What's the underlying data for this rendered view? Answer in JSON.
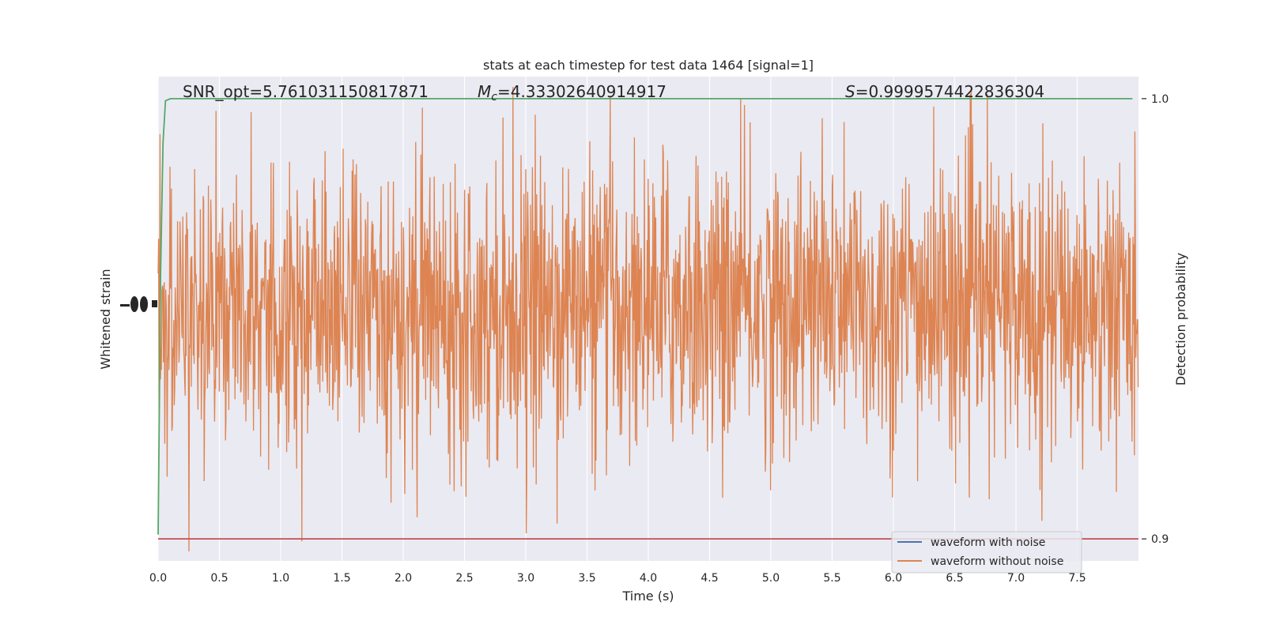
{
  "chart_data": {
    "type": "line",
    "title": "stats at each timestep for test data 1464 [signal=1]",
    "xlabel": "Time (s)",
    "ylabel_left": "Whitened strain",
    "ylabel_right": "Detection probability",
    "xlim": [
      0,
      8
    ],
    "x_ticks": [
      "0.0",
      "0.5",
      "1.0",
      "1.5",
      "2.0",
      "2.5",
      "3.0",
      "3.5",
      "4.0",
      "4.5",
      "5.0",
      "5.5",
      "6.0",
      "6.5",
      "7.0",
      "7.5"
    ],
    "right_ylim": [
      0.895,
      1.005
    ],
    "right_ticks": [
      "0.9",
      "1.0"
    ],
    "annotations": {
      "snr": "SNR_opt=5.761031150817871",
      "mc_symbol": "M",
      "mc_sub": "c",
      "mc_value": "=4.33302640914917",
      "s_symbol": "S",
      "s_value": "=0.9999574422836304"
    },
    "series": [
      {
        "name": "waveform with noise",
        "color": "#4c72b0"
      },
      {
        "name": "waveform without noise",
        "color": "#dd8452",
        "description_amplitude": "noise-like strain, roughly +/-1 with peaks up to ~1.6"
      }
    ],
    "detection_probability": {
      "color": "#55a868",
      "x": [
        0.0,
        0.02,
        0.04,
        0.06,
        0.1,
        0.2,
        7.95
      ],
      "y": [
        0.901,
        0.96,
        0.99,
        0.9995,
        1.0,
        1.0,
        1.0
      ]
    },
    "threshold": {
      "value": 0.9,
      "color": "#c44e52"
    },
    "legend_position": "lower-right",
    "grid": true
  }
}
